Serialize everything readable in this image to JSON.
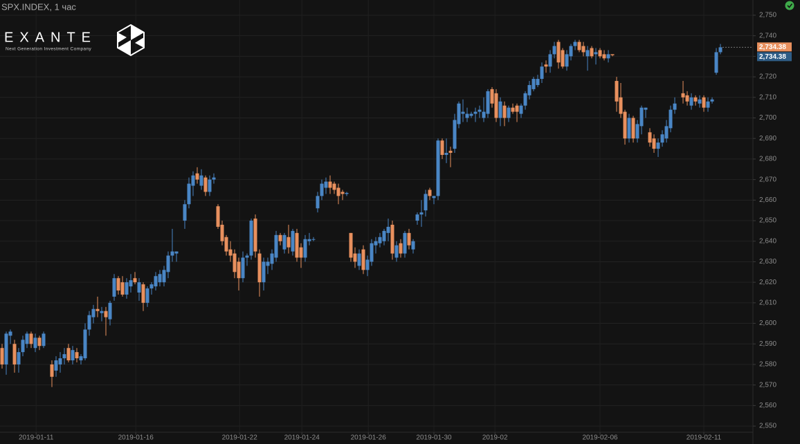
{
  "header": {
    "symbol": "SPX.INDEX, 1 час",
    "logo": "EXANTE",
    "tagline": "Next Generation Investment Company"
  },
  "chart_data": {
    "type": "candlestick",
    "up_color": "#4a86c5",
    "down_color": "#e8905e",
    "grid": true,
    "last_price": 2734.38,
    "last_price_label": "2,734.38",
    "xlim": [
      -0.5,
      180.83
    ],
    "ylim": [
      2547,
      2757.4
    ],
    "xticks": [
      {
        "value": 8.2,
        "label": "2019-01-11"
      },
      {
        "value": 32.2,
        "label": "2019-01-16"
      },
      {
        "value": 57.2,
        "label": "2019-01-22"
      },
      {
        "value": 72.2,
        "label": "2019-01-24"
      },
      {
        "value": 88.2,
        "label": "2019-01-26"
      },
      {
        "value": 104,
        "label": "2019-01-30"
      },
      {
        "value": 118.7,
        "label": "2019-02"
      },
      {
        "value": 144,
        "label": "2019-02-06"
      },
      {
        "value": 169,
        "label": "2019-02-11"
      }
    ],
    "yticks": [
      {
        "value": 2550,
        "label": "2,550"
      },
      {
        "value": 2560,
        "label": "2,560"
      },
      {
        "value": 2570,
        "label": "2,570"
      },
      {
        "value": 2580,
        "label": "2,580"
      },
      {
        "value": 2590,
        "label": "2,590"
      },
      {
        "value": 2600,
        "label": "2,600"
      },
      {
        "value": 2610,
        "label": "2,610"
      },
      {
        "value": 2620,
        "label": "2,620"
      },
      {
        "value": 2630,
        "label": "2,630"
      },
      {
        "value": 2640,
        "label": "2,640"
      },
      {
        "value": 2650,
        "label": "2,650"
      },
      {
        "value": 2660,
        "label": "2,660"
      },
      {
        "value": 2670,
        "label": "2,670"
      },
      {
        "value": 2680,
        "label": "2,680"
      },
      {
        "value": 2690,
        "label": "2,690"
      },
      {
        "value": 2700,
        "label": "2,700"
      },
      {
        "value": 2710,
        "label": "2,710"
      },
      {
        "value": 2720,
        "label": "2,720"
      },
      {
        "value": 2730,
        "label": "2,730"
      },
      {
        "value": 2740,
        "label": "2,740"
      },
      {
        "value": 2750,
        "label": "2,750"
      }
    ],
    "x": [
      0,
      1,
      2,
      3,
      4,
      5,
      6,
      7,
      8,
      9,
      10,
      12,
      13,
      14,
      15,
      16,
      17,
      18,
      19,
      20,
      21,
      22,
      23,
      24,
      25,
      26,
      27,
      28,
      29,
      30,
      31,
      32,
      33,
      34,
      35,
      36,
      37,
      38,
      39,
      40,
      41,
      42,
      44,
      45,
      46,
      47,
      48,
      49,
      50,
      51,
      52,
      53,
      54,
      55,
      56,
      57,
      58,
      59,
      60,
      61,
      62,
      63,
      64,
      65,
      66,
      67,
      68,
      69,
      70,
      71,
      72,
      73,
      74,
      75,
      76,
      77,
      78,
      79,
      80,
      81,
      82,
      83,
      84,
      85,
      86,
      87,
      88,
      89,
      90,
      91,
      92,
      93,
      94,
      95,
      96,
      97,
      98,
      99,
      100,
      101,
      102,
      103,
      104,
      105,
      106,
      107,
      108,
      109,
      110,
      111,
      112,
      113,
      114,
      115,
      116,
      117,
      118,
      119,
      120,
      121,
      122,
      123,
      124,
      125,
      126,
      127,
      128,
      129,
      130,
      131,
      132,
      133,
      134,
      135,
      136,
      137,
      138,
      139,
      140,
      141,
      142,
      143,
      144,
      145,
      146,
      147,
      148,
      149,
      150,
      151,
      152,
      153,
      154,
      155,
      156,
      157,
      158,
      159,
      160,
      161,
      162,
      164,
      165,
      166,
      167,
      168,
      169,
      170,
      171,
      172,
      173
    ],
    "open": [
      2588,
      2580,
      2594,
      2590,
      2580,
      2586,
      2590,
      2595,
      2588,
      2593,
      2589,
      2580,
      2577,
      2580,
      2583,
      2588,
      2582,
      2586,
      2582,
      2583,
      2597,
      2603,
      2607,
      2605,
      2606,
      2602,
      2613,
      2622,
      2620,
      2614,
      2618,
      2622,
      2615,
      2619,
      2610,
      2617,
      2618,
      2620,
      2620,
      2625,
      2633,
      2634,
      2650,
      2658,
      2667,
      2673,
      2667,
      2671,
      2664,
      2670,
      2657,
      2648,
      2642,
      2636,
      2634,
      2630,
      2622,
      2632,
      2633,
      2651,
      2634,
      2620,
      2628,
      2629,
      2632,
      2643,
      2636,
      2642,
      2635,
      2644,
      2637,
      2632,
      2640,
      2641,
      2656,
      2662,
      2666,
      2669,
      2668,
      2666,
      2664,
      2663,
      2644,
      2634,
      2628,
      2636,
      2626,
      2630,
      2638,
      2639,
      2640,
      2644,
      2648,
      2632,
      2639,
      2634,
      2644,
      2636,
      2650,
      2653,
      2655,
      2665,
      2661,
      2662,
      2689,
      2682,
      2684,
      2685,
      2697,
      2702,
      2700,
      2701,
      2702,
      2703,
      2700,
      2702,
      2714,
      2712,
      2700,
      2706,
      2700,
      2705,
      2706,
      2702,
      2706,
      2711,
      2714,
      2716,
      2719,
      2726,
      2725,
      2731,
      2737,
      2733,
      2725,
      2730,
      2735,
      2737,
      2735,
      2730,
      2734,
      2731,
      2733,
      2731,
      2729,
      2731,
      2718,
      2710,
      2703,
      2690,
      2700,
      2690,
      2696,
      2704,
      2693,
      2690,
      2685,
      2688,
      2690,
      2695,
      2704,
      2712,
      2711,
      2706,
      2710,
      2707,
      2710,
      2705,
      2708,
      2722,
      2732
    ],
    "high": [
      2590,
      2596,
      2597,
      2592,
      2588,
      2594,
      2596,
      2596,
      2595,
      2594,
      2596,
      2582,
      2584,
      2586,
      2588,
      2590,
      2589,
      2588,
      2585,
      2600,
      2606,
      2609,
      2613,
      2608,
      2608,
      2611,
      2624,
      2623,
      2623,
      2622,
      2624,
      2625,
      2622,
      2620,
      2618,
      2620,
      2625,
      2626,
      2628,
      2635,
      2646,
      2635,
      2660,
      2671,
      2674,
      2676,
      2675,
      2672,
      2672,
      2673,
      2658,
      2650,
      2643,
      2640,
      2636,
      2632,
      2635,
      2634,
      2651,
      2653,
      2636,
      2632,
      2632,
      2636,
      2645,
      2644,
      2644,
      2648,
      2646,
      2646,
      2639,
      2643,
      2644,
      2642,
      2664,
      2670,
      2671,
      2672,
      2669,
      2668,
      2665,
      2664,
      2644,
      2637,
      2636,
      2638,
      2633,
      2641,
      2642,
      2644,
      2646,
      2651,
      2650,
      2640,
      2641,
      2645,
      2646,
      2641,
      2654,
      2660,
      2665,
      2666,
      2662,
      2690,
      2690,
      2690,
      2686,
      2702,
      2708,
      2709,
      2705,
      2703,
      2705,
      2706,
      2710,
      2714,
      2715,
      2714,
      2710,
      2708,
      2706,
      2707,
      2707,
      2707,
      2713,
      2718,
      2720,
      2721,
      2727,
      2728,
      2733,
      2737,
      2738,
      2734,
      2733,
      2736,
      2738,
      2738,
      2737,
      2735,
      2735,
      2734,
      2734,
      2733,
      2733,
      2731,
      2720,
      2717,
      2704,
      2702,
      2701,
      2699,
      2706,
      2705,
      2695,
      2692,
      2690,
      2694,
      2699,
      2706,
      2710,
      2718,
      2713,
      2712,
      2711,
      2711,
      2711,
      2710,
      2710,
      2734,
      2736
    ],
    "low": [
      2578,
      2575,
      2590,
      2576,
      2576,
      2584,
      2588,
      2588,
      2586,
      2587,
      2588,
      2569,
      2574,
      2576,
      2580,
      2581,
      2580,
      2581,
      2580,
      2582,
      2594,
      2600,
      2603,
      2601,
      2594,
      2599,
      2611,
      2614,
      2613,
      2612,
      2615,
      2619,
      2611,
      2606,
      2608,
      2614,
      2616,
      2618,
      2618,
      2622,
      2630,
      2630,
      2646,
      2656,
      2662,
      2668,
      2665,
      2662,
      2662,
      2668,
      2646,
      2638,
      2633,
      2630,
      2622,
      2616,
      2620,
      2628,
      2631,
      2632,
      2613,
      2616,
      2624,
      2626,
      2630,
      2638,
      2634,
      2634,
      2633,
      2630,
      2627,
      2630,
      2638,
      2640,
      2654,
      2660,
      2663,
      2663,
      2663,
      2658,
      2660,
      2662,
      2630,
      2627,
      2626,
      2624,
      2623,
      2628,
      2634,
      2637,
      2638,
      2640,
      2631,
      2630,
      2632,
      2632,
      2636,
      2634,
      2648,
      2647,
      2652,
      2660,
      2658,
      2660,
      2680,
      2678,
      2676,
      2683,
      2695,
      2698,
      2698,
      2700,
      2698,
      2700,
      2698,
      2700,
      2705,
      2698,
      2696,
      2696,
      2698,
      2702,
      2698,
      2700,
      2704,
      2709,
      2713,
      2715,
      2717,
      2722,
      2722,
      2729,
      2724,
      2724,
      2723,
      2728,
      2733,
      2732,
      2730,
      2723,
      2729,
      2726,
      2729,
      2728,
      2727,
      2730,
      2703,
      2700,
      2687,
      2688,
      2688,
      2688,
      2692,
      2700,
      2686,
      2683,
      2681,
      2686,
      2688,
      2693,
      2702,
      2707,
      2706,
      2704,
      2706,
      2705,
      2703,
      2703,
      2707,
      2721,
      2731
    ],
    "close": [
      2580,
      2595,
      2596,
      2580,
      2586,
      2592,
      2595,
      2590,
      2593,
      2589,
      2595,
      2574,
      2582,
      2583,
      2585,
      2582,
      2587,
      2583,
      2584,
      2597,
      2604,
      2607,
      2606,
      2606,
      2603,
      2610,
      2622,
      2616,
      2614,
      2620,
      2621,
      2620,
      2620,
      2610,
      2617,
      2619,
      2623,
      2624,
      2626,
      2633,
      2635,
      2635,
      2658,
      2668,
      2672,
      2670,
      2672,
      2664,
      2670,
      2671,
      2647,
      2640,
      2635,
      2633,
      2625,
      2622,
      2632,
      2633,
      2650,
      2635,
      2620,
      2630,
      2630,
      2634,
      2643,
      2640,
      2643,
      2637,
      2645,
      2632,
      2632,
      2641,
      2641,
      2641,
      2662,
      2668,
      2669,
      2666,
      2665,
      2662,
      2663,
      2663.5,
      2632,
      2630,
      2634,
      2626,
      2631,
      2639,
      2640,
      2642,
      2645,
      2647,
      2634,
      2638,
      2634,
      2644,
      2638,
      2640,
      2653,
      2654,
      2663,
      2662,
      2662,
      2689,
      2682,
      2683,
      2683,
      2699,
      2707,
      2703,
      2702,
      2702,
      2703,
      2704,
      2703,
      2713,
      2707,
      2700,
      2708,
      2700,
      2705,
      2703,
      2703,
      2706,
      2712,
      2716,
      2719,
      2719,
      2725,
      2725,
      2731,
      2735,
      2727,
      2725,
      2731,
      2735,
      2737,
      2733,
      2732,
      2733,
      2730,
      2732,
      2730,
      2729,
      2731,
      2730.5,
      2708,
      2702,
      2690,
      2700,
      2690,
      2697,
      2705,
      2705,
      2688,
      2685,
      2688,
      2692,
      2696,
      2704,
      2707,
      2710,
      2708,
      2710,
      2708,
      2709,
      2705,
      2708,
      2709,
      2732,
      2734.38
    ]
  }
}
